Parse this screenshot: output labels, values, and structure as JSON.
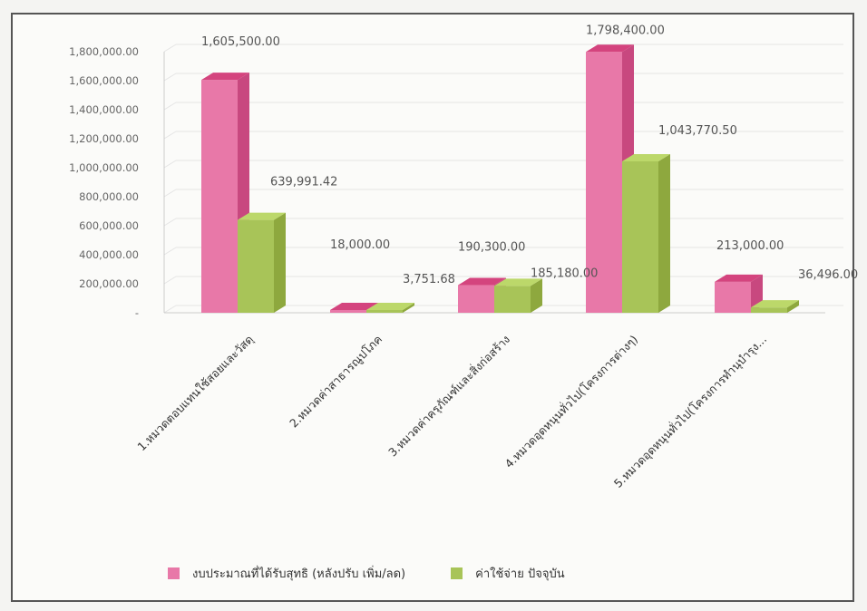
{
  "colors": {
    "budget": "#e878a8",
    "budget_top": "#d4447e",
    "budget_side": "#c8487f",
    "expense": "#a8c458",
    "expense_top": "#bcd86a",
    "expense_side": "#8ea83e"
  },
  "chart_data": {
    "type": "bar",
    "categories": [
      "1.หมวดตอบแทนใช้สอยและวัสดุ",
      "2.หมวดค่าสาธารณูปโภค",
      "3.หมวดค่าครุภัณฑ์และสิ่งก่อสร้าง",
      "4.หมวดอุดหนุนทั่วไป(โครงการต่างๆ)",
      "5.หมวดอุดหนุนทั่วไป(โครงการทำนุบำรุง..."
    ],
    "series": [
      {
        "name": "งบประมาณที่ได้รับสุทธิ (หลังปรับ เพิ่ม/ลด)",
        "values": [
          1605500.0,
          18000.0,
          190300.0,
          1798400.0,
          213000.0
        ],
        "labels": [
          "1,605,500.00",
          "18,000.00",
          "190,300.00",
          "1,798,400.00",
          "213,000.00"
        ]
      },
      {
        "name": "ค่าใช้จ่าย ปัจจุบัน",
        "values": [
          639991.42,
          3751.68,
          185180.0,
          1043770.5,
          36496.0
        ],
        "labels": [
          "639,991.42",
          "3,751.68",
          "185,180.00",
          "1,043,770.50",
          "36,496.00"
        ]
      }
    ],
    "ylim": [
      0,
      1800000
    ],
    "yticks": [
      "-",
      "200,000.00",
      "400,000.00",
      "600,000.00",
      "800,000.00",
      "1,000,000.00",
      "1,200,000.00",
      "1,400,000.00",
      "1,600,000.00",
      "1,800,000.00"
    ],
    "grid": true,
    "legend_position": "bottom"
  }
}
